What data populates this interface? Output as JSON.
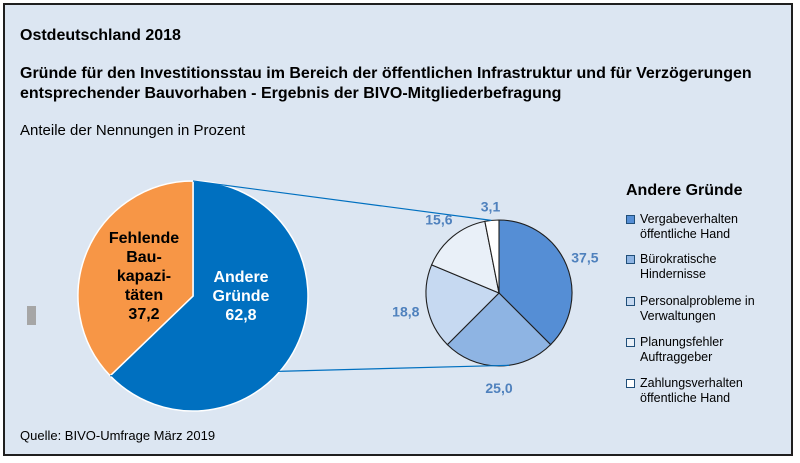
{
  "region": "Ostdeutschland 2018",
  "title_lines": [
    "Gründe für den Investitionsstau im Bereich der öffentlichen Infrastruktur und für Verzögerungen",
    "entsprechender  Bauvorhaben - Ergebnis der BIVO-Mitgliederbefragung"
  ],
  "subtitle": "Anteile der Nennungen in Prozent",
  "source": "Quelle: BIVO-Umfrage März 2019",
  "colors": {
    "background": "#dce6f2",
    "orange": "#f79646",
    "blue": "#0070c0",
    "value_label": "#4f81bd"
  },
  "chart_data": [
    {
      "type": "pie",
      "slices": [
        {
          "label_lines": [
            "Andere",
            "Gründe"
          ],
          "value": 62.8,
          "value_text": "62,8",
          "color": "#0070c0",
          "label_color": "#ffffff"
        },
        {
          "label_lines": [
            "Fehlende",
            "Bau-",
            "kapazi-",
            "täten"
          ],
          "value": 37.2,
          "value_text": "37,2",
          "color": "#f79646",
          "label_color": "#000000"
        }
      ]
    },
    {
      "type": "pie",
      "legend_title": "Andere Gründe",
      "slices": [
        {
          "label_lines": [
            "Vergabeverhalten",
            "öffentliche Hand"
          ],
          "value": 37.5,
          "value_text": "37,5",
          "color": "#558ed5"
        },
        {
          "label_lines": [
            "Bürokratische",
            "Hindernisse"
          ],
          "value": 25.0,
          "value_text": "25,0",
          "color": "#8eb4e3"
        },
        {
          "label_lines": [
            "Personalprobleme in",
            "Verwaltungen"
          ],
          "value": 18.8,
          "value_text": "18,8",
          "color": "#c6d9f1"
        },
        {
          "label_lines": [
            "Planungsfehler",
            "Auftraggeber"
          ],
          "value": 15.6,
          "value_text": "15,6",
          "color": "#e9f0f8"
        },
        {
          "label_lines": [
            "Zahlungsverhalten",
            "öffentliche Hand"
          ],
          "value": 3.1,
          "value_text": "3,1",
          "color": "#ffffff"
        }
      ]
    }
  ]
}
